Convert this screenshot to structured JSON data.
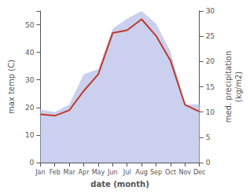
{
  "chart_data": {
    "type": "line",
    "categories": [
      "Jan",
      "Feb",
      "Mar",
      "Apr",
      "May",
      "Jun",
      "Jul",
      "Aug",
      "Sep",
      "Oct",
      "Nov",
      "Dec"
    ],
    "series": [
      {
        "type": "area",
        "axis": "y2",
        "color": "#b8c0e8",
        "values": [
          10.5,
          10.0,
          11.5,
          17.5,
          18.5,
          26.5,
          28.5,
          30.0,
          27.5,
          22.0,
          11.5,
          11.5
        ]
      },
      {
        "type": "line",
        "color": "#c0392b",
        "values": [
          17.5,
          17.0,
          19.0,
          26.0,
          32.0,
          47.0,
          48.0,
          52.0,
          46.0,
          37.0,
          21.0,
          18.5
        ]
      }
    ],
    "xlabel": "date (month)",
    "ylabel": "max temp (C)",
    "y2label": "med. precipitation\n(kg/m2)",
    "ylim": [
      0,
      55
    ],
    "yticks": [
      0,
      10,
      20,
      30,
      40,
      50
    ],
    "y2lim": [
      0,
      30
    ],
    "y2ticks": [
      0,
      5,
      10,
      15,
      20,
      25,
      30
    ],
    "grid": false
  }
}
